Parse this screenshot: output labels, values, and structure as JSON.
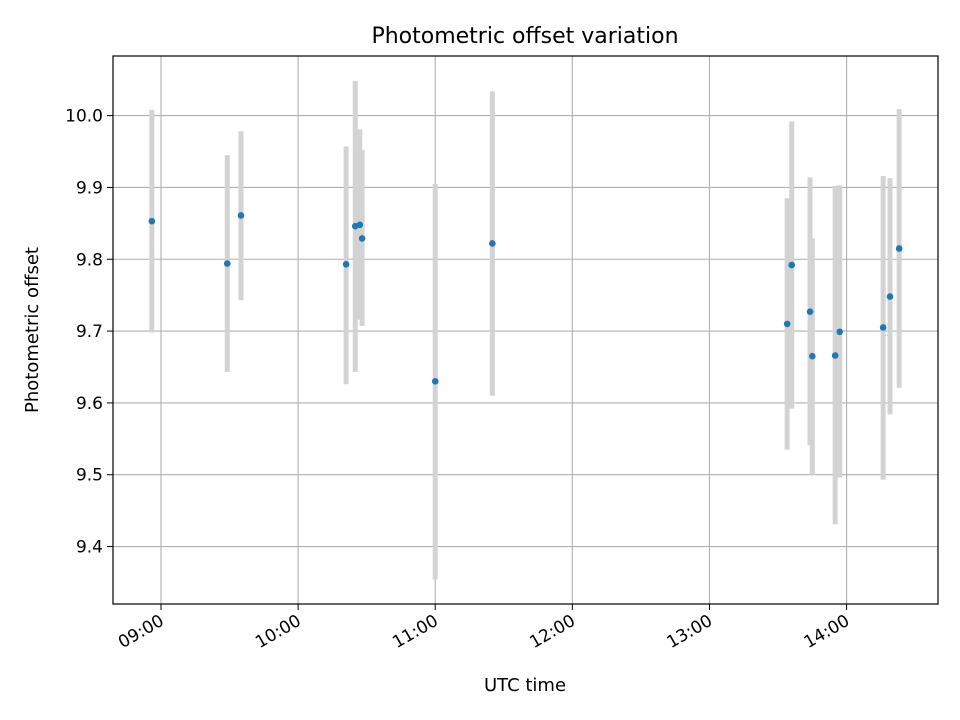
{
  "chart_data": {
    "type": "scatter",
    "title": "Photometric offset variation",
    "xlabel": "UTC time",
    "ylabel": "Photometric offset",
    "xlim": [
      "08:39",
      "14:40"
    ],
    "ylim": [
      9.32,
      10.083
    ],
    "grid": true,
    "x_ticks": [
      "09:00",
      "10:00",
      "11:00",
      "12:00",
      "13:00",
      "14:00"
    ],
    "y_ticks": [
      9.4,
      9.5,
      9.6,
      9.7,
      9.8,
      9.9,
      10.0
    ],
    "marker_color": "#1f77b4",
    "errorbar_color": "#d3d3d3",
    "series": [
      {
        "points": [
          {
            "x": "08:56",
            "y": 9.853,
            "ylow": 9.698,
            "yhigh": 10.008
          },
          {
            "x": "09:29",
            "y": 9.794,
            "ylow": 9.643,
            "yhigh": 9.945
          },
          {
            "x": "09:35",
            "y": 9.861,
            "ylow": 9.743,
            "yhigh": 9.978
          },
          {
            "x": "10:21",
            "y": 9.793,
            "ylow": 9.626,
            "yhigh": 9.957
          },
          {
            "x": "10:25",
            "y": 9.846,
            "ylow": 9.643,
            "yhigh": 10.048
          },
          {
            "x": "10:27",
            "y": 9.848,
            "ylow": 9.716,
            "yhigh": 9.981
          },
          {
            "x": "10:28",
            "y": 9.829,
            "ylow": 9.707,
            "yhigh": 9.952
          },
          {
            "x": "11:00",
            "y": 9.63,
            "ylow": 9.354,
            "yhigh": 9.905
          },
          {
            "x": "11:25",
            "y": 9.822,
            "ylow": 9.61,
            "yhigh": 10.034
          },
          {
            "x": "13:34",
            "y": 9.71,
            "ylow": 9.535,
            "yhigh": 9.885
          },
          {
            "x": "13:36",
            "y": 9.792,
            "ylow": 9.592,
            "yhigh": 9.992
          },
          {
            "x": "13:44",
            "y": 9.727,
            "ylow": 9.541,
            "yhigh": 9.914
          },
          {
            "x": "13:45",
            "y": 9.665,
            "ylow": 9.5,
            "yhigh": 9.829
          },
          {
            "x": "13:55",
            "y": 9.666,
            "ylow": 9.431,
            "yhigh": 9.902
          },
          {
            "x": "13:57",
            "y": 9.699,
            "ylow": 9.496,
            "yhigh": 9.903
          },
          {
            "x": "14:16",
            "y": 9.705,
            "ylow": 9.493,
            "yhigh": 9.916
          },
          {
            "x": "14:19",
            "y": 9.748,
            "ylow": 9.584,
            "yhigh": 9.913
          },
          {
            "x": "14:23",
            "y": 9.815,
            "ylow": 9.621,
            "yhigh": 10.009
          }
        ]
      }
    ]
  }
}
